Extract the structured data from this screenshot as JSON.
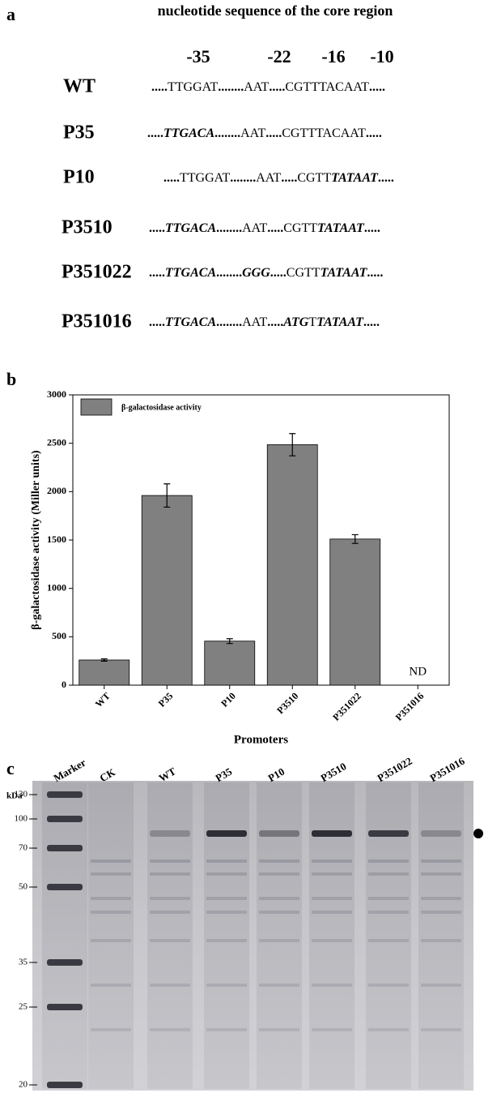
{
  "panel_a": {
    "label": "a",
    "title": "nucleotide sequence of the core region",
    "positions": [
      "-35",
      "-22",
      "-16",
      "-10"
    ],
    "rows": [
      {
        "name": "WT",
        "segments": [
          {
            "text": ".....",
            "mutated": false
          },
          {
            "text": "TTGGAT",
            "mutated": false
          },
          {
            "text": "........",
            "mutated": false
          },
          {
            "text": "AAT",
            "mutated": false
          },
          {
            "text": ".....",
            "mutated": false
          },
          {
            "text": "CGTTTACAAT",
            "mutated": false
          },
          {
            "text": ".....",
            "mutated": false
          }
        ]
      },
      {
        "name": "P35",
        "segments": [
          {
            "text": ".....",
            "mutated": false
          },
          {
            "text": "TTGACA",
            "mutated": true
          },
          {
            "text": "........",
            "mutated": false
          },
          {
            "text": "AAT",
            "mutated": false
          },
          {
            "text": ".....",
            "mutated": false
          },
          {
            "text": "CGTTTACAAT",
            "mutated": false
          },
          {
            "text": ".....",
            "mutated": false
          }
        ]
      },
      {
        "name": "P10",
        "segments": [
          {
            "text": ".....",
            "mutated": false
          },
          {
            "text": "TTGGAT",
            "mutated": false
          },
          {
            "text": "........",
            "mutated": false
          },
          {
            "text": "AAT",
            "mutated": false
          },
          {
            "text": ".....",
            "mutated": false
          },
          {
            "text": "CGTT",
            "mutated": false
          },
          {
            "text": "TATAAT",
            "mutated": true
          },
          {
            "text": ".....",
            "mutated": false
          }
        ]
      },
      {
        "name": "P3510",
        "segments": [
          {
            "text": ".....",
            "mutated": false
          },
          {
            "text": "TTGACA",
            "mutated": true
          },
          {
            "text": "........",
            "mutated": false
          },
          {
            "text": "AAT",
            "mutated": false
          },
          {
            "text": ".....",
            "mutated": false
          },
          {
            "text": "CGTT",
            "mutated": false
          },
          {
            "text": "TATAAT",
            "mutated": true
          },
          {
            "text": ".....",
            "mutated": false
          }
        ]
      },
      {
        "name": "P351022",
        "segments": [
          {
            "text": ".....",
            "mutated": false
          },
          {
            "text": "TTGACA",
            "mutated": true
          },
          {
            "text": "........",
            "mutated": false
          },
          {
            "text": "GGG",
            "mutated": true
          },
          {
            "text": ".....",
            "mutated": false
          },
          {
            "text": "CGTT",
            "mutated": false
          },
          {
            "text": "TATAAT",
            "mutated": true
          },
          {
            "text": ".....",
            "mutated": false
          }
        ]
      },
      {
        "name": "P351016",
        "segments": [
          {
            "text": ".....",
            "mutated": false
          },
          {
            "text": "TTGACA",
            "mutated": true
          },
          {
            "text": "........",
            "mutated": false
          },
          {
            "text": "AAT",
            "mutated": false
          },
          {
            "text": ".....",
            "mutated": false
          },
          {
            "text": "ATG",
            "mutated": true
          },
          {
            "text": "T",
            "mutated": false
          },
          {
            "text": "TATAAT",
            "mutated": true
          },
          {
            "text": ".....",
            "mutated": false
          }
        ]
      }
    ]
  },
  "chart_data": {
    "type": "bar",
    "panel_label": "b",
    "y_label": "β-galactosidase activity (Miller units)",
    "x_label": "Promoters",
    "categories": [
      "WT",
      "P35",
      "P10",
      "P3510",
      "P351022",
      "P351016"
    ],
    "series": [
      {
        "name": "β-galactosidase activity",
        "color": "#808080",
        "values": [
          260,
          1960,
          455,
          2485,
          1510,
          null
        ],
        "errors": [
          12,
          120,
          25,
          115,
          45,
          null
        ],
        "value_labels": [
          null,
          null,
          null,
          null,
          null,
          "ND"
        ]
      }
    ],
    "ylim": [
      0,
      3000
    ],
    "yticks": [
      0,
      500,
      1000,
      1500,
      2000,
      2500,
      3000
    ],
    "legend": "top-left",
    "grid": false
  },
  "panel_c": {
    "label": "c",
    "unit": "kDa",
    "lanes": [
      "Marker",
      "CK",
      "WT",
      "P35",
      "P10",
      "P3510",
      "P351022",
      "P351016"
    ],
    "markers": [
      130,
      100,
      70,
      50,
      35,
      25,
      20
    ]
  }
}
